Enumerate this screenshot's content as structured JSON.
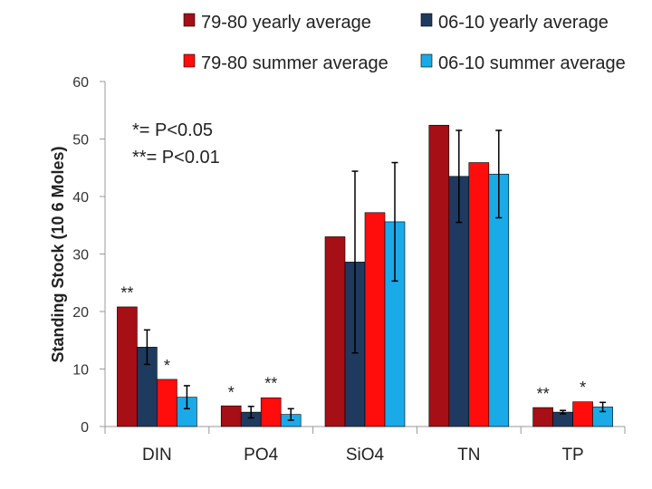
{
  "chart_data": {
    "type": "bar",
    "title": "",
    "xlabel": "",
    "ylabel": "Standing Stock (10 6 Moles)",
    "ylim": [
      0,
      60
    ],
    "yticks": [
      0,
      10,
      20,
      30,
      40,
      50,
      60
    ],
    "categories": [
      "DIN",
      "PO4",
      "SiO4",
      "TN",
      "TP"
    ],
    "series": [
      {
        "name": "79-80 yearly average",
        "color": "#a50f15",
        "values": [
          20.8,
          3.6,
          33.0,
          52.4,
          3.3
        ],
        "errors": null
      },
      {
        "name": "06-10 yearly average",
        "color": "#1f3a5f",
        "values": [
          13.8,
          2.5,
          28.6,
          43.5,
          2.5
        ],
        "errors": [
          3.0,
          1.0,
          15.8,
          8.0,
          0.3
        ]
      },
      {
        "name": "79-80 summer average",
        "color": "#ff0d0d",
        "values": [
          8.2,
          5.0,
          37.2,
          45.9,
          4.3
        ],
        "errors": null
      },
      {
        "name": "06-10 summer average",
        "color": "#1aaae8",
        "values": [
          5.1,
          2.1,
          35.6,
          43.9,
          3.4
        ],
        "errors": [
          2.0,
          1.0,
          10.3,
          7.6,
          0.8
        ]
      }
    ],
    "annotations": {
      "note_line1": "*= P<0.05",
      "note_line2": "**= P<0.01",
      "significance_marks": [
        {
          "text": "**",
          "category": "DIN",
          "series": 0,
          "y": 22.3
        },
        {
          "text": "*",
          "category": "DIN",
          "series": 2,
          "y": 9.6
        },
        {
          "text": "*",
          "category": "PO4",
          "series": 0,
          "y": 5.0
        },
        {
          "text": "**",
          "category": "PO4",
          "series": 2,
          "y": 6.5
        },
        {
          "text": "**",
          "category": "TP",
          "series": 0,
          "y": 4.7
        },
        {
          "text": "*",
          "category": "TP",
          "series": 2,
          "y": 5.8
        }
      ]
    },
    "legend": "top",
    "grid": false
  }
}
